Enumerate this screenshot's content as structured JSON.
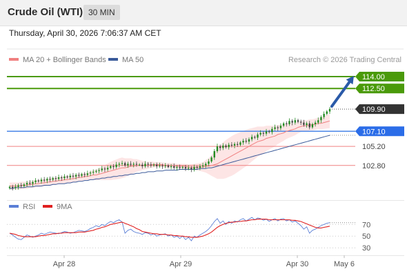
{
  "header": {
    "title": "Crude Oil (WTI)",
    "interval": "30 MIN",
    "timestamp": "Thursday, April 30, 2026 7:06:37 AM CET"
  },
  "legend": {
    "ma20_label": "MA 20 + Bollinger Bands",
    "ma50_label": "MA 50",
    "ma20_color": "#f08080",
    "ma50_color": "#3a5a9a",
    "credit": "Research © 2026 Trading Central"
  },
  "colors": {
    "resistance_line": "#4a9a0a",
    "pivot_line": "#4a86e8",
    "support_line": "#f08080",
    "target_badge": "#4a9a0a",
    "last_price_badge": "#333333",
    "pivot_badge": "#2b6de8",
    "candle_up": "#228b22",
    "candle_down": "#444444",
    "rsi_color": "#5b7fd6",
    "rsi_ma_color": "#e02020",
    "arrow_color": "#2a5aa8"
  },
  "chart_data": [
    {
      "type": "candlestick",
      "title": "",
      "x_labels": [
        "Apr 28",
        "Apr 29",
        "Apr 30",
        "May 6"
      ],
      "ylim": [
        99.3,
        115.3
      ],
      "levels": [
        {
          "kind": "resistance",
          "label": "114.00",
          "value": 114.0
        },
        {
          "kind": "resistance",
          "label": "112.50",
          "value": 112.5
        },
        {
          "kind": "last",
          "label": "109.90",
          "value": 109.9
        },
        {
          "kind": "pivot",
          "label": "107.10",
          "value": 107.1
        },
        {
          "kind": "support",
          "label": "105.20",
          "value": 105.2
        },
        {
          "kind": "support",
          "label": "102.80",
          "value": 102.8
        }
      ],
      "closes": [
        100.1,
        99.95,
        100.1,
        100.3,
        100.2,
        100.4,
        100.6,
        100.5,
        100.7,
        100.9,
        100.8,
        101.0,
        100.9,
        101.1,
        101.0,
        101.2,
        101.1,
        101.3,
        101.2,
        101.4,
        101.3,
        101.5,
        101.4,
        101.6,
        101.5,
        101.7,
        101.6,
        101.8,
        101.9,
        102.0,
        102.1,
        102.2,
        102.4,
        102.3,
        102.5,
        102.7,
        102.6,
        102.9,
        103.0,
        103.1,
        102.8,
        103.0,
        102.9,
        103.0,
        102.9,
        102.9,
        102.7,
        103.0,
        102.9,
        102.8,
        102.9,
        102.7,
        102.8,
        102.7,
        102.8,
        102.6,
        102.7,
        102.5,
        102.6,
        102.5,
        102.6,
        102.4,
        102.5,
        102.3,
        102.6,
        102.5,
        102.7,
        102.8,
        103.0,
        103.3,
        103.8,
        104.6,
        105.2,
        105.0,
        105.3,
        105.1,
        105.4,
        105.3,
        105.5,
        105.4,
        105.7,
        105.9,
        105.8,
        106.1,
        106.4,
        106.3,
        106.7,
        106.9,
        106.8,
        107.1,
        107.0,
        107.4,
        107.6,
        107.5,
        107.8,
        108.1,
        108.0,
        108.4,
        108.2,
        108.5,
        108.3,
        108.2,
        107.9,
        108.1,
        107.6,
        108.0,
        108.2,
        108.5,
        108.9,
        109.3,
        109.6,
        109.9
      ],
      "ma20": [
        100.2,
        100.2,
        100.2,
        100.2,
        100.3,
        100.3,
        100.3,
        100.4,
        100.4,
        100.5,
        100.5,
        100.6,
        100.6,
        100.7,
        100.7,
        100.8,
        100.8,
        100.9,
        100.9,
        101.0,
        101.0,
        101.1,
        101.1,
        101.2,
        101.3,
        101.3,
        101.4,
        101.4,
        101.5,
        101.6,
        101.6,
        101.7,
        101.8,
        101.9,
        102.0,
        102.1,
        102.2,
        102.3,
        102.4,
        102.5,
        102.5,
        102.6,
        102.7,
        102.7,
        102.8,
        102.8,
        102.8,
        102.8,
        102.8,
        102.9,
        102.9,
        102.9,
        102.9,
        102.9,
        102.8,
        102.8,
        102.8,
        102.8,
        102.7,
        102.7,
        102.7,
        102.7,
        102.6,
        102.6,
        102.6,
        102.6,
        102.6,
        102.6,
        102.7,
        102.7,
        102.8,
        102.9,
        103.0,
        103.2,
        103.4,
        103.6,
        103.8,
        104.0,
        104.2,
        104.4,
        104.6,
        104.8,
        105.0,
        105.2,
        105.4,
        105.6,
        105.8,
        105.9,
        106.0,
        106.2,
        106.3,
        106.4,
        106.5,
        106.7,
        106.8,
        106.9,
        107.1,
        107.2,
        107.3,
        107.4,
        107.6,
        107.7,
        107.8,
        107.8,
        107.9,
        107.9,
        108.0,
        108.1,
        108.1,
        108.2,
        108.3,
        108.4
      ],
      "bb_width": [
        0.45,
        0.45,
        0.45,
        0.45,
        0.45,
        0.45,
        0.45,
        0.45,
        0.45,
        0.45,
        0.45,
        0.45,
        0.45,
        0.45,
        0.45,
        0.45,
        0.45,
        0.45,
        0.45,
        0.45,
        0.45,
        0.45,
        0.45,
        0.45,
        0.45,
        0.45,
        0.45,
        0.45,
        0.55,
        0.6,
        0.7,
        0.75,
        0.85,
        0.95,
        1.05,
        1.15,
        1.2,
        1.25,
        1.3,
        1.3,
        1.2,
        1.1,
        1.0,
        0.9,
        0.8,
        0.7,
        0.6,
        0.5,
        0.45,
        0.4,
        0.35,
        0.3,
        0.3,
        0.3,
        0.3,
        0.3,
        0.3,
        0.3,
        0.3,
        0.3,
        0.3,
        0.3,
        0.3,
        0.35,
        0.4,
        0.45,
        0.5,
        0.6,
        0.8,
        1.0,
        1.3,
        1.6,
        1.9,
        2.1,
        2.3,
        2.4,
        2.45,
        2.5,
        2.5,
        2.45,
        2.4,
        2.35,
        2.3,
        2.2,
        2.1,
        2.0,
        1.9,
        1.8,
        1.7,
        1.6,
        1.5,
        1.4,
        1.3,
        1.2,
        1.1,
        1.0,
        0.95,
        0.9,
        0.85,
        0.8,
        0.75,
        0.7,
        0.7,
        0.7,
        0.7,
        0.7,
        0.7,
        0.7,
        0.75,
        0.8,
        0.85,
        0.9
      ],
      "ma50": [
        99.9,
        99.9,
        100.0,
        100.0,
        100.0,
        100.0,
        100.1,
        100.1,
        100.1,
        100.2,
        100.2,
        100.2,
        100.3,
        100.3,
        100.3,
        100.4,
        100.4,
        100.5,
        100.5,
        100.5,
        100.6,
        100.6,
        100.7,
        100.7,
        100.8,
        100.8,
        100.9,
        100.9,
        101.0,
        101.0,
        101.1,
        101.1,
        101.2,
        101.2,
        101.3,
        101.3,
        101.4,
        101.4,
        101.5,
        101.5,
        101.6,
        101.6,
        101.7,
        101.7,
        101.8,
        101.8,
        101.9,
        101.9,
        102.0,
        102.0,
        102.0,
        102.1,
        102.1,
        102.1,
        102.2,
        102.2,
        102.2,
        102.2,
        102.2,
        102.3,
        102.3,
        102.3,
        102.3,
        102.3,
        102.3,
        102.3,
        102.4,
        102.4,
        102.4,
        102.5,
        102.5,
        102.6,
        102.7,
        102.8,
        102.9,
        103.0,
        103.1,
        103.2,
        103.3,
        103.4,
        103.5,
        103.6,
        103.7,
        103.8,
        103.9,
        104.0,
        104.1,
        104.2,
        104.3,
        104.4,
        104.5,
        104.6,
        104.7,
        104.8,
        104.9,
        105.0,
        105.1,
        105.2,
        105.3,
        105.4,
        105.5,
        105.6,
        105.7,
        105.8,
        105.9,
        106.0,
        106.1,
        106.2,
        106.3,
        106.4,
        106.5,
        106.6
      ]
    },
    {
      "type": "line",
      "title": "",
      "series": [
        {
          "name": "RSI",
          "values": [
            55,
            52,
            48,
            45,
            44,
            48,
            52,
            50,
            48,
            50,
            52,
            55,
            53,
            55,
            57,
            56,
            55,
            54,
            56,
            58,
            57,
            55,
            56,
            58,
            60,
            59,
            58,
            60,
            63,
            65,
            68,
            66,
            70,
            68,
            72,
            75,
            73,
            76,
            78,
            74,
            55,
            60,
            62,
            58,
            56,
            55,
            53,
            56,
            55,
            52,
            54,
            50,
            52,
            53,
            54,
            50,
            52,
            48,
            50,
            46,
            50,
            44,
            48,
            42,
            50,
            48,
            52,
            55,
            58,
            62,
            68,
            75,
            80,
            72,
            76,
            70,
            75,
            72,
            76,
            74,
            78,
            80,
            76,
            79,
            82,
            78,
            81,
            80,
            77,
            79,
            75,
            78,
            80,
            76,
            79,
            80,
            76,
            78,
            74,
            76,
            72,
            68,
            62,
            66,
            55,
            60,
            62,
            65,
            68,
            70,
            72,
            73
          ]
        },
        {
          "name": "9MA",
          "values": [
            55,
            54,
            53,
            51,
            50,
            49,
            49,
            49,
            49,
            49,
            50,
            51,
            51,
            52,
            53,
            54,
            54,
            55,
            55,
            56,
            56,
            56,
            56,
            56,
            57,
            57,
            57,
            58,
            59,
            60,
            62,
            63,
            65,
            66,
            68,
            70,
            71,
            72,
            73,
            74,
            72,
            70,
            68,
            66,
            63,
            61,
            58,
            57,
            56,
            55,
            54,
            54,
            53,
            53,
            53,
            52,
            52,
            51,
            51,
            50,
            50,
            49,
            49,
            48,
            48,
            48,
            49,
            50,
            52,
            54,
            57,
            61,
            65,
            68,
            70,
            72,
            73,
            74,
            74,
            75,
            75,
            76,
            76,
            77,
            78,
            78,
            79,
            79,
            79,
            79,
            78,
            78,
            78,
            78,
            78,
            78,
            78,
            78,
            77,
            77,
            76,
            75,
            73,
            71,
            69,
            67,
            65,
            64,
            64,
            65,
            66,
            67
          ]
        }
      ],
      "ylim": [
        22,
        88
      ],
      "y_ticks": [
        70,
        50,
        30
      ]
    }
  ]
}
